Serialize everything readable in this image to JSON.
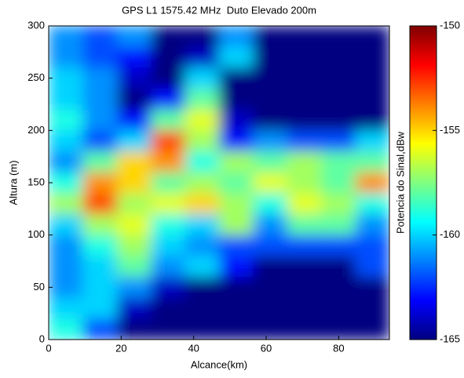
{
  "chart_data": {
    "type": "heatmap",
    "title": "GPS L1 1575.42 MHz  Duto Elevado 200m",
    "xlabel": "Alcance(km)",
    "ylabel": "Altura (m)",
    "colorbar_label": "Potencia do Sinal,dBw",
    "x": [
      4.7,
      14.1,
      23.5,
      32.9,
      42.3,
      51.7,
      61.1,
      70.5,
      79.9,
      89.3
    ],
    "y": [
      290,
      270,
      250,
      230,
      210,
      190,
      170,
      150,
      130,
      110,
      90,
      70,
      50,
      30,
      10
    ],
    "z": [
      [
        -161,
        -162,
        -161,
        -165,
        -165,
        -161,
        -165,
        -165,
        -165,
        -165
      ],
      [
        -161,
        -162,
        -163,
        -165,
        -164,
        -160,
        -165,
        -165,
        -165,
        -165
      ],
      [
        -160,
        -161,
        -164,
        -165,
        -160,
        -165,
        -165,
        -165,
        -165,
        -165
      ],
      [
        -160,
        -161,
        -165,
        -163,
        -158,
        -165,
        -165,
        -165,
        -165,
        -165
      ],
      [
        -159,
        -161,
        -163,
        -158,
        -156,
        -164,
        -165,
        -165,
        -165,
        -165
      ],
      [
        -160,
        -162,
        -160,
        -153,
        -157,
        -163,
        -161,
        -162,
        -162,
        -160
      ],
      [
        -161,
        -158,
        -155,
        -154,
        -159,
        -157,
        -158,
        -157,
        -158,
        -158
      ],
      [
        -159,
        -154,
        -155,
        -158,
        -157,
        -158,
        -156,
        -157,
        -158,
        -154
      ],
      [
        -157,
        -153,
        -157,
        -156,
        -155,
        -157,
        -159,
        -156,
        -157,
        -159
      ],
      [
        -160,
        -157,
        -156,
        -159,
        -160,
        -157,
        -161,
        -158,
        -158,
        -161
      ],
      [
        -161,
        -159,
        -157,
        -160,
        -161,
        -162,
        -162,
        -162,
        -162,
        -162
      ],
      [
        -161,
        -160,
        -158,
        -161,
        -160,
        -163,
        -165,
        -165,
        -165,
        -162
      ],
      [
        -161,
        -160,
        -161,
        -164,
        -165,
        -165,
        -165,
        -165,
        -165,
        -165
      ],
      [
        -160,
        -160,
        -164,
        -165,
        -165,
        -165,
        -165,
        -165,
        -165,
        -165
      ],
      [
        -159,
        -162,
        -165,
        -165,
        -165,
        -165,
        -165,
        -165,
        -165,
        -165
      ]
    ],
    "xlim": [
      0,
      94
    ],
    "xticks": [
      0,
      20,
      40,
      60,
      80
    ],
    "ylim": [
      0,
      300
    ],
    "yticks": [
      0,
      50,
      100,
      150,
      200,
      250,
      300
    ],
    "clim": [
      -165,
      -150
    ],
    "cticks": [
      -165,
      -160,
      -155,
      -150
    ],
    "colormap": "jet"
  }
}
